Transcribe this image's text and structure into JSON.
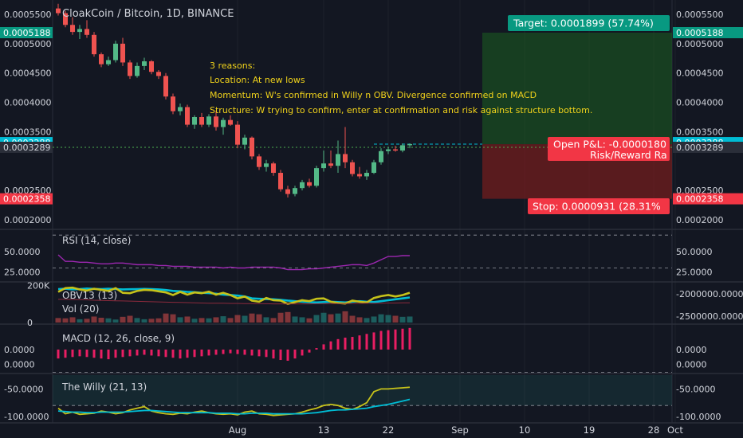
{
  "header": {
    "title": "CloakCoin / Bitcoin, 1D, BINANCE"
  },
  "colors": {
    "background": "#131722",
    "grid": "#363a45",
    "up": "#26a69a",
    "up_bright": "#53b987",
    "down": "#ef5350",
    "annotation_text": "#f0d21b",
    "target_green": "#089981",
    "stop_red": "#f23645",
    "cyan": "#00bcd4",
    "purple": "#9c27b0",
    "yellow": "#c6c21a",
    "macd_bar": "#e91e63"
  },
  "annotation": {
    "lines": [
      "3 reasons:",
      "Location:  At new lows",
      "Momentum: W's confirmed in Willy n OBV. Divergence confirmed on MACD",
      "Structure: W trying to confirm, enter at confirmation and risk against structure bottom."
    ]
  },
  "position": {
    "target_label": "Target: 0.0001899 (57.74%)",
    "stop_label": "Stop: 0.0000931 (28.31%",
    "pnl_label": "Open P&L: -0.0000180",
    "rr_label": "Risk/Reward Ra",
    "target": 0.0005188,
    "entry": 0.0003288,
    "stop": 0.0002358,
    "start_day": 60,
    "end_day": 88
  },
  "x_axis": {
    "labels": [
      {
        "label": "Aug",
        "day": 25
      },
      {
        "label": "13",
        "day": 37
      },
      {
        "label": "22",
        "day": 46
      },
      {
        "label": "Sep",
        "day": 56
      },
      {
        "label": "10",
        "day": 65
      },
      {
        "label": "19",
        "day": 74
      },
      {
        "label": "28",
        "day": 83
      },
      {
        "label": "Oct",
        "day": 86
      }
    ]
  },
  "price_axis": {
    "ticks": [
      "0.0005500",
      "0.0005000",
      "0.0004500",
      "0.0004000",
      "0.0003500",
      "0.0002500",
      "0.0002000"
    ],
    "tick_values": [
      0.00055,
      0.0005,
      0.00045,
      0.0004,
      0.00035,
      0.00025,
      0.0002
    ],
    "right_tags": [
      {
        "text": "0.0005188",
        "value": 0.0005188,
        "color": "#089981"
      },
      {
        "text": "0.0003288",
        "value": 0.0003288,
        "color": "#00bcd4"
      },
      {
        "text": "0.0003289",
        "value": 0.0003289,
        "color": "#2a2e39"
      },
      {
        "text": "0.0002358",
        "value": 0.0002358,
        "color": "#f23645"
      }
    ],
    "left_tags": [
      {
        "text": "0.0005188",
        "value": 0.0005188,
        "color": "#089981"
      },
      {
        "text": "0.0003288",
        "value": 0.0003288,
        "color": "#00bcd4"
      },
      {
        "text": "0.0003289",
        "value": 0.0003289,
        "color": "#2a2e39"
      },
      {
        "text": "0.0002358",
        "value": 0.0002358,
        "color": "#f23645"
      }
    ]
  },
  "chart_data": [
    {
      "type": "candlestick",
      "title": "CloakCoin / Bitcoin, 1D, BINANCE",
      "x_unit": "day index",
      "ylim": [
        0.00018,
        0.000565
      ],
      "candles": [
        [
          0,
          0.00056,
          0.000568,
          0.000548,
          0.000552
        ],
        [
          1,
          0.000552,
          0.000556,
          0.000528,
          0.000532
        ],
        [
          2,
          0.000532,
          0.000545,
          0.000515,
          0.00052
        ],
        [
          3,
          0.00052,
          0.000532,
          0.000508,
          0.000525
        ],
        [
          4,
          0.000525,
          0.00054,
          0.00051,
          0.000515
        ],
        [
          5,
          0.000515,
          0.00052,
          0.000478,
          0.000482
        ],
        [
          6,
          0.000482,
          0.000485,
          0.00046,
          0.000465
        ],
        [
          7,
          0.000465,
          0.000478,
          0.000462,
          0.000472
        ],
        [
          8,
          0.000472,
          0.000505,
          0.000468,
          0.0005
        ],
        [
          9,
          0.0005,
          0.00051,
          0.000462,
          0.000468
        ],
        [
          10,
          0.000468,
          0.000472,
          0.00044,
          0.000445
        ],
        [
          11,
          0.000445,
          0.000468,
          0.000442,
          0.000462
        ],
        [
          12,
          0.000462,
          0.000476,
          0.000455,
          0.00047
        ],
        [
          13,
          0.00047,
          0.000472,
          0.000448,
          0.000452
        ],
        [
          14,
          0.000452,
          0.000455,
          0.00044,
          0.000445
        ],
        [
          15,
          0.000445,
          0.00045,
          0.000405,
          0.00041
        ],
        [
          16,
          0.00041,
          0.000415,
          0.00038,
          0.000385
        ],
        [
          17,
          0.000385,
          0.000398,
          0.000378,
          0.000392
        ],
        [
          18,
          0.000392,
          0.000396,
          0.000358,
          0.000362
        ],
        [
          19,
          0.000362,
          0.000378,
          0.000355,
          0.000375
        ],
        [
          20,
          0.000375,
          0.000382,
          0.000358,
          0.000362
        ],
        [
          21,
          0.000362,
          0.00038,
          0.000358,
          0.000376
        ],
        [
          22,
          0.000376,
          0.000386,
          0.000352,
          0.000358
        ],
        [
          23,
          0.000358,
          0.000374,
          0.000345,
          0.00037
        ],
        [
          24,
          0.00037,
          0.000378,
          0.00036,
          0.000362
        ],
        [
          25,
          0.000362,
          0.000368,
          0.000322,
          0.000328
        ],
        [
          26,
          0.000328,
          0.000345,
          0.00032,
          0.00034
        ],
        [
          27,
          0.00034,
          0.000342,
          0.000303,
          0.000308
        ],
        [
          28,
          0.000308,
          0.000312,
          0.000285,
          0.00029
        ],
        [
          29,
          0.00029,
          0.000302,
          0.000282,
          0.000296
        ],
        [
          30,
          0.000296,
          0.000299,
          0.000275,
          0.00028
        ],
        [
          31,
          0.00028,
          0.000285,
          0.000248,
          0.000252
        ],
        [
          32,
          0.000252,
          0.000258,
          0.000238,
          0.000244
        ],
        [
          33,
          0.000244,
          0.000258,
          0.00024,
          0.000254
        ],
        [
          34,
          0.000254,
          0.000268,
          0.00025,
          0.000264
        ],
        [
          35,
          0.000264,
          0.00027,
          0.000255,
          0.000258
        ],
        [
          36,
          0.000258,
          0.000292,
          0.000255,
          0.000288
        ],
        [
          37,
          0.000288,
          0.000318,
          0.000282,
          0.000296
        ],
        [
          38,
          0.000296,
          0.000318,
          0.000288,
          0.000292
        ],
        [
          39,
          0.000292,
          0.000335,
          0.00028,
          0.000312
        ],
        [
          40,
          0.000312,
          0.000358,
          0.000288,
          0.000298
        ],
        [
          41,
          0.000298,
          0.000302,
          0.000274,
          0.000278
        ],
        [
          42,
          0.000278,
          0.00029,
          0.00027,
          0.000274
        ],
        [
          43,
          0.000274,
          0.000285,
          0.000268,
          0.00028
        ],
        [
          44,
          0.00028,
          0.000302,
          0.000278,
          0.000298
        ],
        [
          45,
          0.000298,
          0.000322,
          0.000294,
          0.000317
        ],
        [
          46,
          0.000317,
          0.000324,
          0.000312,
          0.00032
        ],
        [
          47,
          0.00032,
          0.000326,
          0.000316,
          0.000318
        ],
        [
          48,
          0.000318,
          0.00033,
          0.000315,
          0.000327
        ],
        [
          49,
          0.000327,
          0.00033,
          0.000322,
          0.000329
        ]
      ]
    },
    {
      "type": "line",
      "title": "RSI (14, close)",
      "ylim": [
        15,
        75
      ],
      "tick_labels": [
        "50.0000",
        "25.0000"
      ],
      "tick_values": [
        50,
        25
      ],
      "levels": [
        70,
        30
      ],
      "series": [
        {
          "color": "#9c27b0",
          "values": [
            46,
            38,
            38,
            37,
            37,
            36,
            35,
            35,
            36,
            36,
            35,
            34,
            34,
            34,
            33,
            33,
            32,
            32,
            32,
            31,
            31,
            31,
            31,
            30,
            31,
            30,
            30,
            31,
            31,
            31,
            31,
            30,
            28,
            28,
            28,
            29,
            29,
            30,
            31,
            32,
            33,
            34,
            34,
            33,
            36,
            40,
            44,
            44,
            45,
            45
          ]
        }
      ]
    },
    {
      "type": "line+bar",
      "title": "OBV13 (13)",
      "subtitle": "Vol (20)",
      "ylim": [
        0,
        210
      ],
      "left_ticks": [
        {
          "label": "200K",
          "value": 200
        },
        {
          "label": "0",
          "value": 0
        }
      ],
      "right_ticks": [
        "-2000000.0000",
        "-2500000.0000"
      ],
      "volume": [
        30,
        28,
        35,
        22,
        25,
        40,
        32,
        28,
        20,
        38,
        45,
        30,
        22,
        25,
        28,
        60,
        55,
        35,
        40,
        25,
        30,
        28,
        35,
        42,
        30,
        50,
        45,
        60,
        55,
        35,
        30,
        65,
        70,
        40,
        35,
        28,
        50,
        65,
        55,
        60,
        75,
        45,
        35,
        30,
        40,
        55,
        50,
        45,
        38,
        40
      ],
      "series": [
        {
          "color": "#00bcd4",
          "values": [
            180,
            182,
            178,
            180,
            183,
            181,
            180,
            182,
            180,
            178,
            179,
            180,
            181,
            180,
            178,
            175,
            170,
            168,
            165,
            163,
            160,
            158,
            155,
            150,
            148,
            145,
            140,
            130,
            128,
            126,
            125,
            122,
            118,
            115,
            112,
            110,
            108,
            110,
            112,
            110,
            108,
            112,
            115,
            112,
            110,
            115,
            120,
            125,
            130,
            135
          ]
        },
        {
          "color": "#c6c21a",
          "values": [
            165,
            185,
            188,
            178,
            172,
            182,
            176,
            170,
            185,
            160,
            158,
            170,
            176,
            174,
            168,
            162,
            148,
            165,
            150,
            162,
            158,
            166,
            150,
            160,
            148,
            130,
            140,
            118,
            112,
            132,
            120,
            118,
            100,
            110,
            120,
            115,
            128,
            130,
            112,
            105,
            102,
            118,
            112,
            108,
            132,
            142,
            148,
            140,
            148,
            160
          ]
        },
        {
          "color": "#8b2a3c",
          "values": [
            125,
            125,
            124,
            123,
            122,
            120,
            119,
            118,
            117,
            116,
            115,
            114,
            113,
            112,
            111,
            110,
            109,
            108,
            107,
            106,
            105,
            104,
            104,
            104,
            103,
            103,
            102,
            102,
            101,
            101,
            100,
            100,
            100,
            100,
            100,
            100,
            101,
            101,
            102,
            102,
            102,
            103,
            103,
            104,
            104,
            104,
            105,
            105,
            106,
            106
          ]
        }
      ]
    },
    {
      "type": "bar",
      "title": "MACD (12, 26, close, 9)",
      "ylim": [
        -1.5,
        1.6
      ],
      "tick_labels": [
        "0.0000",
        "0.0000"
      ],
      "tick_values": [
        0,
        -1
      ],
      "values": [
        -0.6,
        -0.55,
        -0.5,
        -0.45,
        -0.5,
        -0.55,
        -0.6,
        -0.65,
        -0.55,
        -0.5,
        -0.45,
        -0.4,
        -0.35,
        -0.4,
        -0.45,
        -0.5,
        -0.55,
        -0.6,
        -0.55,
        -0.5,
        -0.45,
        -0.4,
        -0.35,
        -0.3,
        -0.25,
        -0.3,
        -0.35,
        -0.4,
        -0.45,
        -0.5,
        -0.6,
        -0.7,
        -0.75,
        -0.6,
        -0.4,
        -0.2,
        0.1,
        0.35,
        0.55,
        0.7,
        0.8,
        0.85,
        0.95,
        1.05,
        1.15,
        1.25,
        1.3,
        1.35,
        1.4,
        1.45
      ]
    },
    {
      "type": "line",
      "title": "The Willy (21, 13)",
      "ylim": [
        -110,
        -25
      ],
      "tick_labels": [
        "-50.0000",
        "-100.0000"
      ],
      "tick_values": [
        -50,
        -100
      ],
      "levels": [
        -20,
        -80
      ],
      "series": [
        {
          "color": "#c6c21a",
          "values": [
            -85,
            -95,
            -92,
            -96,
            -95,
            -94,
            -90,
            -92,
            -95,
            -93,
            -88,
            -85,
            -82,
            -90,
            -93,
            -95,
            -96,
            -94,
            -95,
            -92,
            -90,
            -93,
            -95,
            -96,
            -95,
            -97,
            -92,
            -90,
            -95,
            -96,
            -98,
            -97,
            -96,
            -95,
            -92,
            -88,
            -85,
            -80,
            -78,
            -80,
            -85,
            -87,
            -82,
            -75,
            -55,
            -50,
            -50,
            -49,
            -48,
            -47
          ]
        },
        {
          "color": "#00bcd4",
          "values": [
            -90,
            -91,
            -92,
            -92,
            -93,
            -93,
            -92,
            -92,
            -92,
            -92,
            -91,
            -90,
            -89,
            -89,
            -90,
            -91,
            -92,
            -93,
            -93,
            -93,
            -93,
            -93,
            -94,
            -94,
            -94,
            -95,
            -95,
            -94,
            -94,
            -94,
            -95,
            -95,
            -95,
            -95,
            -95,
            -94,
            -93,
            -91,
            -89,
            -88,
            -88,
            -87,
            -86,
            -85,
            -82,
            -80,
            -78,
            -75,
            -72,
            -69
          ]
        }
      ]
    }
  ]
}
